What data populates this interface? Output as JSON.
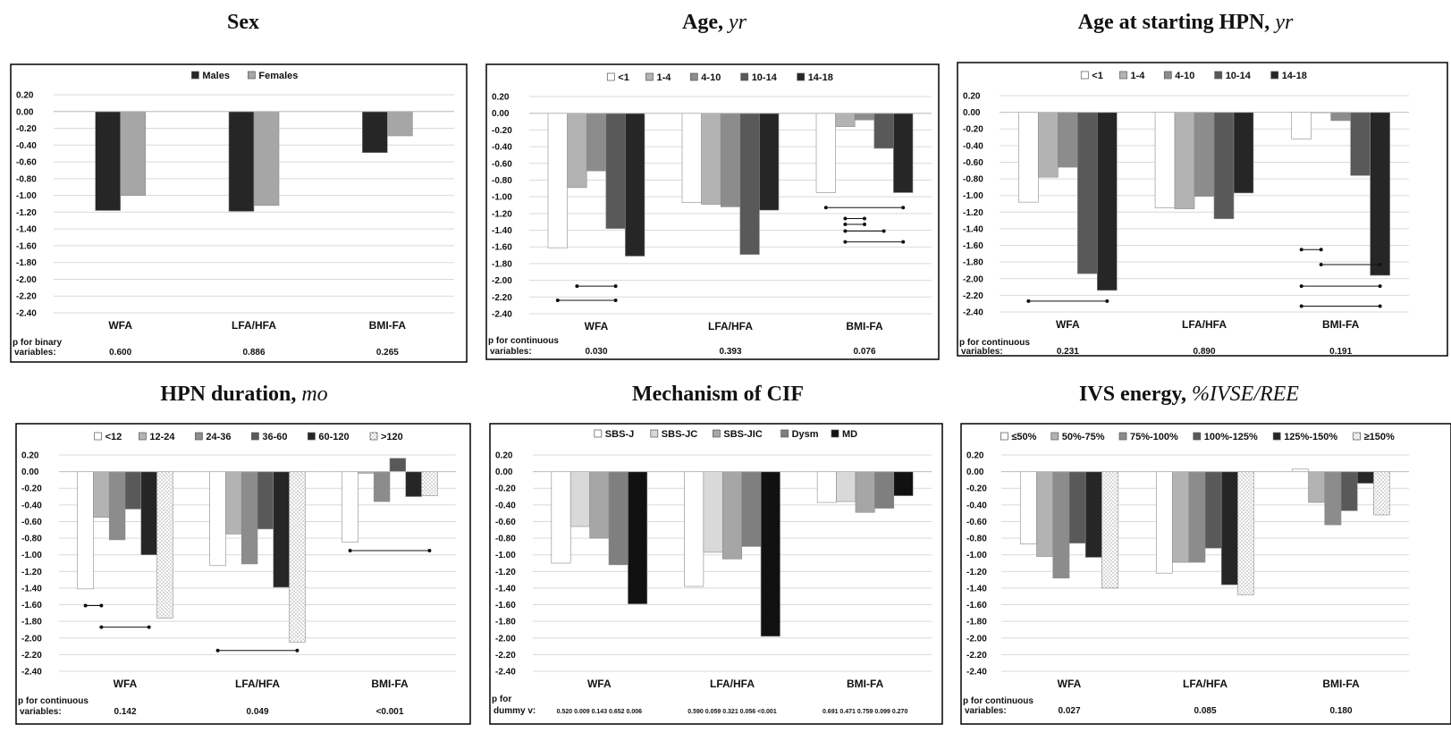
{
  "chart_data": [
    {
      "type": "bar",
      "title_main": "Sex",
      "title_unit": "",
      "categories": [
        "WFA",
        "LFA/HFA",
        "BMI-FA"
      ],
      "series": [
        {
          "name": "Males",
          "fill": "#262626",
          "pattern": "none",
          "values": [
            -1.18,
            -1.19,
            -0.49
          ]
        },
        {
          "name": "Females",
          "fill": "#a6a6a6",
          "pattern": "none",
          "values": [
            -1.0,
            -1.12,
            -0.29
          ]
        }
      ],
      "ylim": [
        -2.4,
        0.2
      ],
      "yticks": [
        "0.20",
        "0.00",
        "-0.20",
        "-0.40",
        "-0.60",
        "-0.80",
        "-1.00",
        "-1.20",
        "-1.40",
        "-1.60",
        "-1.80",
        "-2.00",
        "-2.20",
        "-2.40"
      ],
      "p_label_1": "p for binary",
      "p_label_2": "variables:",
      "p_values": [
        "0.600",
        "0.886",
        "0.265"
      ],
      "brackets": []
    },
    {
      "type": "bar",
      "title_main": "Age,",
      "title_unit": "yr",
      "categories": [
        "WFA",
        "LFA/HFA",
        "BMI-FA"
      ],
      "series": [
        {
          "name": "<1",
          "fill": "#ffffff",
          "pattern": "none",
          "values": [
            -1.61,
            -1.07,
            -0.95
          ]
        },
        {
          "name": "1-4",
          "fill": "#b3b3b3",
          "pattern": "none",
          "values": [
            -0.89,
            -1.09,
            -0.16
          ]
        },
        {
          "name": "4-10",
          "fill": "#8c8c8c",
          "pattern": "none",
          "values": [
            -0.69,
            -1.12,
            -0.08
          ]
        },
        {
          "name": "10-14",
          "fill": "#595959",
          "pattern": "none",
          "values": [
            -1.38,
            -1.69,
            -0.42
          ]
        },
        {
          "name": "14-18",
          "fill": "#262626",
          "pattern": "none",
          "values": [
            -1.71,
            -1.16,
            -0.95
          ]
        }
      ],
      "ylim": [
        -2.4,
        0.2
      ],
      "yticks": [
        "0.20",
        "0.00",
        "-0.20",
        "-0.40",
        "-0.60",
        "-0.80",
        "-1.00",
        "-1.20",
        "-1.40",
        "-1.60",
        "-1.80",
        "-2.00",
        "-2.20",
        "-2.40"
      ],
      "p_label_1": "p for continuous",
      "p_label_2": "variables:",
      "p_values": [
        "0.030",
        "0.393",
        "0.076"
      ],
      "brackets": [
        {
          "cat": 0,
          "from": 1,
          "to": 3,
          "y": -2.07
        },
        {
          "cat": 0,
          "from": 0,
          "to": 3,
          "y": -2.24
        },
        {
          "cat": 2,
          "from": 0,
          "to": 4,
          "y": -1.13
        },
        {
          "cat": 2,
          "from": 1,
          "to": 2,
          "y": -1.26
        },
        {
          "cat": 2,
          "from": 1,
          "to": 2,
          "y": -1.33
        },
        {
          "cat": 2,
          "from": 1,
          "to": 3,
          "y": -1.41
        },
        {
          "cat": 2,
          "from": 1,
          "to": 4,
          "y": -1.54
        }
      ]
    },
    {
      "type": "bar",
      "title_main": "Age at starting HPN,",
      "title_unit": "yr",
      "categories": [
        "WFA",
        "LFA/HFA",
        "BMI-FA"
      ],
      "series": [
        {
          "name": "<1",
          "fill": "#ffffff",
          "pattern": "none",
          "values": [
            -1.08,
            -1.15,
            -0.32
          ]
        },
        {
          "name": "1-4",
          "fill": "#b3b3b3",
          "pattern": "none",
          "values": [
            -0.78,
            -1.16,
            0.0
          ]
        },
        {
          "name": "4-10",
          "fill": "#8c8c8c",
          "pattern": "none",
          "values": [
            -0.66,
            -1.01,
            -0.1
          ]
        },
        {
          "name": "10-14",
          "fill": "#595959",
          "pattern": "none",
          "values": [
            -1.94,
            -1.28,
            -0.76
          ]
        },
        {
          "name": "14-18",
          "fill": "#262626",
          "pattern": "none",
          "values": [
            -2.14,
            -0.97,
            -1.96
          ]
        }
      ],
      "ylim": [
        -2.4,
        0.2
      ],
      "yticks": [
        "0.20",
        "0.00",
        "-0.20",
        "-0.40",
        "-0.60",
        "-0.80",
        "-1.00",
        "-1.20",
        "-1.40",
        "-1.60",
        "-1.80",
        "-2.00",
        "-2.20",
        "-2.40"
      ],
      "p_label_1": "p for continuous",
      "p_label_2": "variables:",
      "p_values": [
        "0.231",
        "0.890",
        "0.191"
      ],
      "brackets": [
        {
          "cat": 0,
          "from": 0,
          "to": 4,
          "y": -2.27
        },
        {
          "cat": 2,
          "from": 0,
          "to": 1,
          "y": -1.65
        },
        {
          "cat": 2,
          "from": 1,
          "to": 4,
          "y": -1.83
        },
        {
          "cat": 2,
          "from": 0,
          "to": 4,
          "y": -2.09
        },
        {
          "cat": 2,
          "from": 0,
          "to": 4,
          "y": -2.33
        }
      ]
    },
    {
      "type": "bar",
      "title_main": "HPN duration,",
      "title_unit": "mo",
      "categories": [
        "WFA",
        "LFA/HFA",
        "BMI-FA"
      ],
      "series": [
        {
          "name": "<12",
          "fill": "#ffffff",
          "pattern": "none",
          "values": [
            -1.41,
            -1.13,
            -0.85
          ]
        },
        {
          "name": "12-24",
          "fill": "#b3b3b3",
          "pattern": "none",
          "values": [
            -0.55,
            -0.75,
            -0.02
          ]
        },
        {
          "name": "24-36",
          "fill": "#8c8c8c",
          "pattern": "none",
          "values": [
            -0.82,
            -1.11,
            -0.36
          ]
        },
        {
          "name": "36-60",
          "fill": "#595959",
          "pattern": "none",
          "values": [
            -0.45,
            -0.69,
            0.16
          ]
        },
        {
          "name": "60-120",
          "fill": "#262626",
          "pattern": "none",
          "values": [
            -1.0,
            -1.39,
            -0.3
          ]
        },
        {
          "name": ">120",
          "fill": "#ffffff",
          "pattern": "dots",
          "values": [
            -1.76,
            -2.05,
            -0.29
          ]
        }
      ],
      "ylim": [
        -2.4,
        0.2
      ],
      "yticks": [
        "0.20",
        "0.00",
        "-0.20",
        "-0.40",
        "-0.60",
        "-0.80",
        "-1.00",
        "-1.20",
        "-1.40",
        "-1.60",
        "-1.80",
        "-2.00",
        "-2.20",
        "-2.40"
      ],
      "p_label_1": "p for continuous",
      "p_label_2": "variables:",
      "p_values": [
        "0.142",
        "0.049",
        "<0.001"
      ],
      "brackets": [
        {
          "cat": 0,
          "from": 0,
          "to": 1,
          "y": -1.61
        },
        {
          "cat": 0,
          "from": 1,
          "to": 4,
          "y": -1.87
        },
        {
          "cat": 1,
          "from": 0,
          "to": 5,
          "y": -2.15
        },
        {
          "cat": 2,
          "from": 0,
          "to": 5,
          "y": -0.95
        }
      ]
    },
    {
      "type": "bar",
      "title_main": "Mechanism of CIF",
      "title_unit": "",
      "categories": [
        "WFA",
        "LFA/HFA",
        "BMI-FA"
      ],
      "series": [
        {
          "name": "SBS-J",
          "fill": "#ffffff",
          "pattern": "none",
          "values": [
            -1.1,
            -1.38,
            -0.37
          ]
        },
        {
          "name": "SBS-JC",
          "fill": "#d9d9d9",
          "pattern": "none",
          "values": [
            -0.66,
            -0.97,
            -0.36
          ]
        },
        {
          "name": "SBS-JIC",
          "fill": "#a6a6a6",
          "pattern": "none",
          "values": [
            -0.8,
            -1.05,
            -0.49
          ]
        },
        {
          "name": "Dysm",
          "fill": "#7f7f7f",
          "pattern": "none",
          "values": [
            -1.12,
            -0.9,
            -0.44
          ]
        },
        {
          "name": "MD",
          "fill": "#111111",
          "pattern": "none",
          "values": [
            -1.59,
            -1.98,
            -0.29
          ]
        }
      ],
      "ylim": [
        -2.4,
        0.2
      ],
      "yticks": [
        "0.20",
        "0.00",
        "-0.20",
        "-0.40",
        "-0.60",
        "-0.80",
        "-1.00",
        "-1.20",
        "-1.40",
        "-1.60",
        "-1.80",
        "-2.00",
        "-2.20",
        "-2.40"
      ],
      "p_label_1": "p for",
      "p_label_2": "dummy v:",
      "p_values_small": [
        [
          "0.520",
          "0.009",
          "0.143",
          "0.652",
          "0.006"
        ],
        [
          "0.590",
          "0.059",
          "0.321",
          "0.056",
          "<0.001"
        ],
        [
          "0.691",
          "0.471",
          "0.759",
          "0.099",
          "0.270"
        ]
      ],
      "brackets": []
    },
    {
      "type": "bar",
      "title_main": "IVS energy,",
      "title_unit": "%IVSE/REE",
      "categories": [
        "WFA",
        "LFA/HFA",
        "BMI-FA"
      ],
      "series": [
        {
          "name": "≤50%",
          "fill": "#ffffff",
          "pattern": "none",
          "values": [
            -0.87,
            -1.22,
            0.03
          ]
        },
        {
          "name": "50%-75%",
          "fill": "#b3b3b3",
          "pattern": "none",
          "values": [
            -1.02,
            -1.09,
            -0.37
          ]
        },
        {
          "name": "75%-100%",
          "fill": "#8c8c8c",
          "pattern": "none",
          "values": [
            -1.28,
            -1.09,
            -0.64
          ]
        },
        {
          "name": "100%-125%",
          "fill": "#595959",
          "pattern": "none",
          "values": [
            -0.86,
            -0.92,
            -0.47
          ]
        },
        {
          "name": "125%-150%",
          "fill": "#262626",
          "pattern": "none",
          "values": [
            -1.03,
            -1.36,
            -0.14
          ]
        },
        {
          "name": "≥150%",
          "fill": "#ffffff",
          "pattern": "dots",
          "values": [
            -1.4,
            -1.48,
            -0.52
          ]
        }
      ],
      "ylim": [
        -2.4,
        0.2
      ],
      "yticks": [
        "0.20",
        "0.00",
        "-0.20",
        "-0.40",
        "-0.60",
        "-0.80",
        "-1.00",
        "-1.20",
        "-1.40",
        "-1.60",
        "-1.80",
        "-2.00",
        "-2.20",
        "-2.40"
      ],
      "p_label_1": "p for continuous",
      "p_label_2": "variables:",
      "p_values": [
        "0.027",
        "0.085",
        "0.180"
      ],
      "brackets": []
    }
  ]
}
